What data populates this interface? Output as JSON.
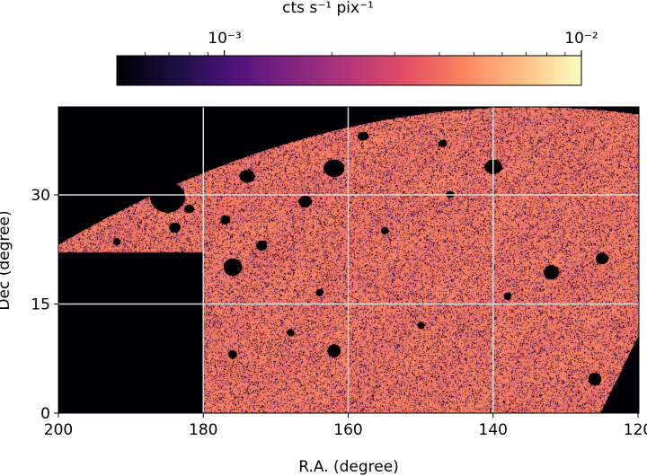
{
  "chart_data": {
    "type": "heatmap",
    "xlabel": "R.A. (degree)",
    "ylabel": "Dec (degree)",
    "xlim": [
      200,
      120
    ],
    "ylim": [
      0,
      42
    ],
    "x_ticks": [
      200,
      180,
      160,
      140,
      120
    ],
    "y_ticks": [
      0,
      15,
      30
    ],
    "grid": true,
    "grid_color": "#d9d9d9",
    "colormap": "magma",
    "colorbar": {
      "label": "cts s⁻¹ pix⁻¹",
      "scale": "log",
      "range": [
        0.0005,
        0.01
      ],
      "major_ticks": [
        {
          "value": 0.001,
          "label": "10⁻³"
        },
        {
          "value": 0.01,
          "label": "10⁻²"
        }
      ],
      "minor_ticks": [
        0.0006,
        0.0007,
        0.0008,
        0.0009,
        0.002,
        0.003,
        0.004,
        0.005,
        0.006,
        0.007,
        0.008,
        0.009
      ],
      "placement": "top"
    },
    "typical_value": 0.005
  }
}
